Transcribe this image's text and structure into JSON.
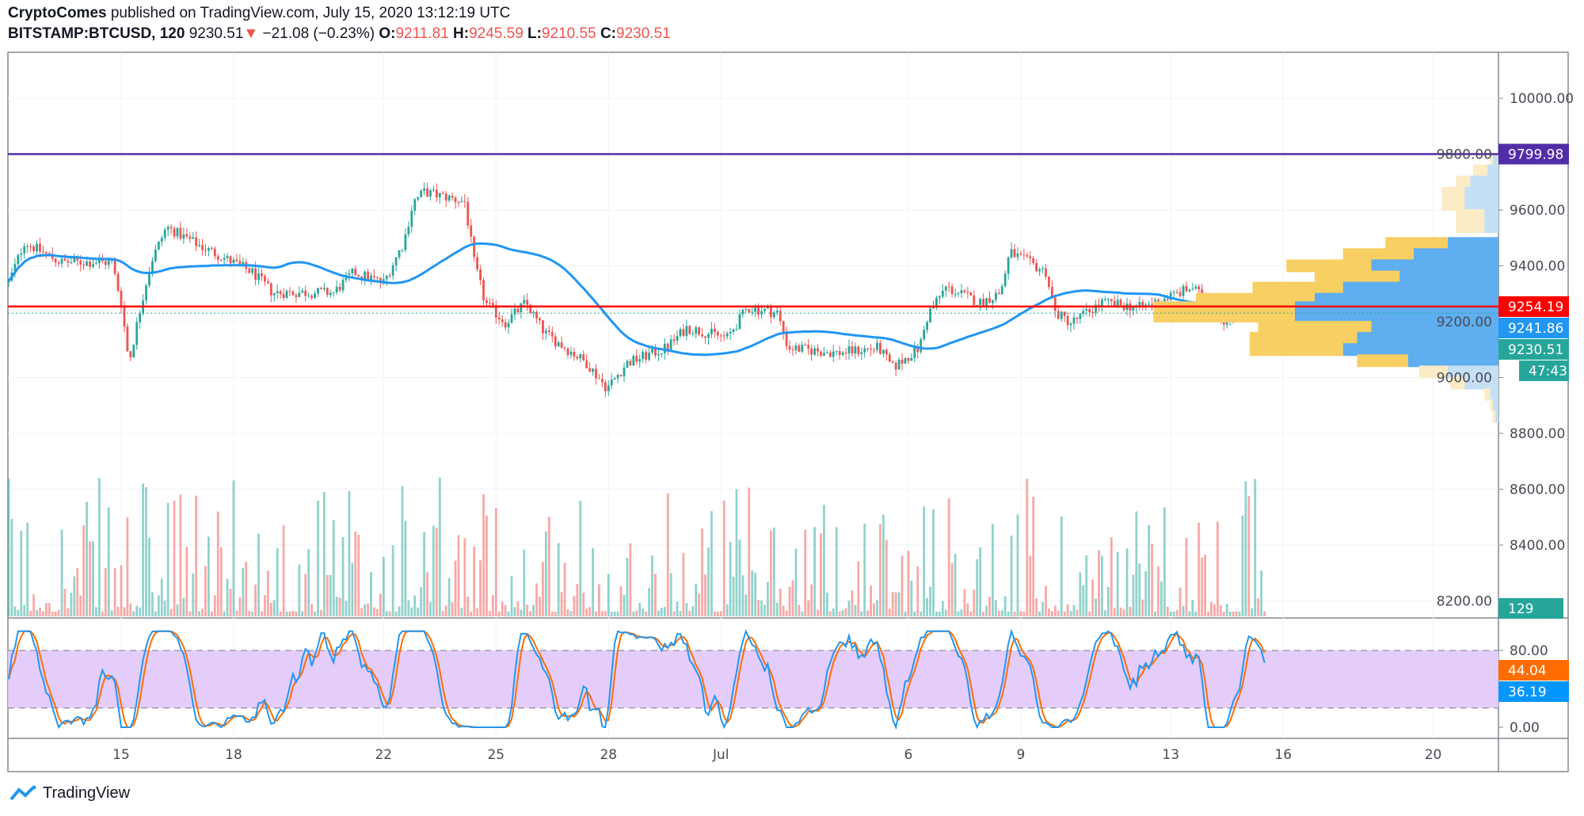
{
  "header": {
    "author": "CryptoComes",
    "published": "published on TradingView.com, July 15, 2020 13:12:19 UTC",
    "symbol": "BITSTAMP:BTCUSD, 120",
    "last": "9230.51",
    "change": "−21.08 (−0.23%)",
    "o_label": "O:",
    "o": "9211.81",
    "h_label": "H:",
    "h": "9245.59",
    "l_label": "L:",
    "l": "9210.55",
    "c_label": "C:",
    "c": "9230.51"
  },
  "colors": {
    "up": "#26a69a",
    "down": "#ef5350",
    "ma": "#2196f3",
    "resistance": "#512da8",
    "level": "#ff0000",
    "stoch_k": "#2196f3",
    "stoch_d": "#ff6d00",
    "band": "#e1c8fa"
  },
  "chart_data": {
    "type": "candlestick",
    "interval": "120",
    "price_ticks": [
      "10000.00",
      "9800.00",
      "9600.00",
      "9400.00",
      "9200.00",
      "9000.00",
      "8800.00",
      "8600.00",
      "8400.00",
      "8200.00"
    ],
    "ylim": [
      8130,
      10190
    ],
    "time_ticks": [
      {
        "d": "2020-06-15",
        "label": "15"
      },
      {
        "d": "2020-06-18",
        "label": "18"
      },
      {
        "d": "2020-06-22",
        "label": "22"
      },
      {
        "d": "2020-06-25",
        "label": "25"
      },
      {
        "d": "2020-06-28",
        "label": "28"
      },
      {
        "d": "2020-07-01",
        "label": "Jul"
      },
      {
        "d": "2020-07-06",
        "label": "6"
      },
      {
        "d": "2020-07-09",
        "label": "9"
      },
      {
        "d": "2020-07-13",
        "label": "13"
      },
      {
        "d": "2020-07-16",
        "label": "16"
      },
      {
        "d": "2020-07-20",
        "label": "20"
      }
    ],
    "close_path": [
      [
        "2020-06-12T00",
        9340
      ],
      [
        "2020-06-12T10",
        9485
      ],
      [
        "2020-06-13T09",
        9413
      ],
      [
        "2020-06-14T18",
        9413
      ],
      [
        "2020-06-15T00",
        9268
      ],
      [
        "2020-06-15T05",
        9052
      ],
      [
        "2020-06-15T13",
        9268
      ],
      [
        "2020-06-15T19",
        9413
      ],
      [
        "2020-06-16T05",
        9539
      ],
      [
        "2020-06-17T04",
        9467
      ],
      [
        "2020-06-17T17",
        9431
      ],
      [
        "2020-06-18T12",
        9377
      ],
      [
        "2020-06-19T01",
        9304
      ],
      [
        "2020-06-20T16",
        9304
      ],
      [
        "2020-06-21T05",
        9377
      ],
      [
        "2020-06-22T00",
        9340
      ],
      [
        "2020-06-22T13",
        9485
      ],
      [
        "2020-06-22T19",
        9629
      ],
      [
        "2020-06-23T02",
        9665
      ],
      [
        "2020-06-24T04",
        9629
      ],
      [
        "2020-06-24T10",
        9413
      ],
      [
        "2020-06-24T17",
        9268
      ],
      [
        "2020-06-25T06",
        9196
      ],
      [
        "2020-06-25T19",
        9268
      ],
      [
        "2020-06-26T07",
        9160
      ],
      [
        "2020-06-27T10",
        9052
      ],
      [
        "2020-06-27T23",
        8962
      ],
      [
        "2020-06-28T12",
        9052
      ],
      [
        "2020-06-29T13",
        9106
      ],
      [
        "2020-06-30T02",
        9178
      ],
      [
        "2020-07-01T04",
        9142
      ],
      [
        "2020-07-01T17",
        9250
      ],
      [
        "2020-07-02T12",
        9232
      ],
      [
        "2020-07-02T19",
        9106
      ],
      [
        "2020-07-04T02",
        9088
      ],
      [
        "2020-07-05T05",
        9106
      ],
      [
        "2020-07-05T14",
        9034
      ],
      [
        "2020-07-06T07",
        9106
      ],
      [
        "2020-07-06T13",
        9232
      ],
      [
        "2020-07-07T00",
        9322
      ],
      [
        "2020-07-07T22",
        9268
      ],
      [
        "2020-07-08T11",
        9304
      ],
      [
        "2020-07-08T17",
        9449
      ],
      [
        "2020-07-09T16",
        9377
      ],
      [
        "2020-07-09T22",
        9232
      ],
      [
        "2020-07-10T08",
        9196
      ],
      [
        "2020-07-11T04",
        9268
      ],
      [
        "2020-07-12T05",
        9250
      ],
      [
        "2020-07-13T14",
        9322
      ],
      [
        "2020-07-14T12",
        9196
      ],
      [
        "2020-07-15T01",
        9268
      ],
      [
        "2020-07-15T12",
        9230.51
      ]
    ],
    "moving_average_line": "blue",
    "horizontal_lines": [
      {
        "price": 9799.98,
        "label": "9799.98",
        "color": "#512da8"
      },
      {
        "price": 9254.19,
        "label": "9254.19",
        "color": "#ff0000"
      }
    ],
    "price_labels": [
      {
        "label": "9241.86",
        "color": "#2196f3",
        "price": 9241.86
      },
      {
        "label": "9230.51",
        "color": "#26a69a",
        "price": 9230.51
      },
      {
        "label": "47:43",
        "color": "#26a69a"
      }
    ],
    "volume": {
      "last_label": "129"
    },
    "volume_profile": [
      [
        9780,
        0.01,
        0.02
      ],
      [
        9740,
        0.05,
        0.04
      ],
      [
        9700,
        0.05,
        0.1
      ],
      [
        9660,
        0.08,
        0.12
      ],
      [
        9620,
        0.08,
        0.12
      ],
      [
        9580,
        0.1,
        0.05
      ],
      [
        9540,
        0.1,
        0.05
      ],
      [
        9480,
        0.22,
        0.18
      ],
      [
        9440,
        0.25,
        0.3
      ],
      [
        9400,
        0.3,
        0.45
      ],
      [
        9360,
        0.3,
        0.35
      ],
      [
        9320,
        0.32,
        0.55
      ],
      [
        9280,
        0.42,
        0.65
      ],
      [
        9250,
        0.5,
        0.72
      ],
      [
        9220,
        0.5,
        0.72
      ],
      [
        9180,
        0.4,
        0.45
      ],
      [
        9140,
        0.38,
        0.5
      ],
      [
        9100,
        0.33,
        0.55
      ],
      [
        9060,
        0.18,
        0.32
      ],
      [
        9020,
        0.1,
        0.18
      ],
      [
        8980,
        0.05,
        0.12
      ],
      [
        8940,
        0.02,
        0.03
      ],
      [
        8900,
        0.01,
        0.02
      ],
      [
        8860,
        0.01,
        0.01
      ]
    ],
    "stoch_rsi": {
      "ticks": [
        "80.00",
        "0.00"
      ],
      "band": [
        20,
        80
      ],
      "k_label": "44.04",
      "d_label": "36.19"
    }
  },
  "footer": {
    "brand": "TradingView"
  }
}
